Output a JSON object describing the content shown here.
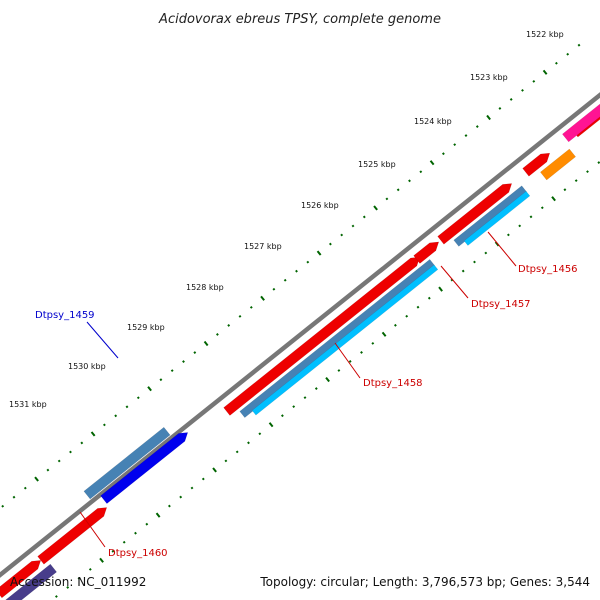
{
  "title": "Acidovorax ebreus TPSY, complete genome",
  "footer": {
    "accession": "Accession: NC_011992",
    "summary": "Topology: circular; Length: 3,796,573 bp; Genes: 3,544"
  },
  "ticks": [
    {
      "label": "1522 kbp"
    },
    {
      "label": "1523 kbp"
    },
    {
      "label": "1524 kbp"
    },
    {
      "label": "1525 kbp"
    },
    {
      "label": "1526 kbp"
    },
    {
      "label": "1527 kbp"
    },
    {
      "label": "1528 kbp"
    },
    {
      "label": "1529 kbp"
    },
    {
      "label": "1530 kbp"
    },
    {
      "label": "1531 kbp"
    }
  ],
  "gene_labels": [
    {
      "name": "Dtpsy_1456",
      "color": "#cc0000"
    },
    {
      "name": "Dtpsy_1457",
      "color": "#cc0000"
    },
    {
      "name": "Dtpsy_1458",
      "color": "#cc0000"
    },
    {
      "name": "Dtpsy_1459",
      "color": "#0000cc"
    },
    {
      "name": "Dtpsy_1460",
      "color": "#cc0000"
    }
  ],
  "colors": {
    "backbone": "#888888",
    "gene_red": "#ee0000",
    "cds_blue": "#4682b4",
    "cds_cyan": "#00bfff",
    "cds_navy": "#0000ee",
    "cds_purple": "#483d8b",
    "cds_orange": "#ff8c00",
    "cds_pink": "#ff1493",
    "tick_green": "#006400"
  }
}
